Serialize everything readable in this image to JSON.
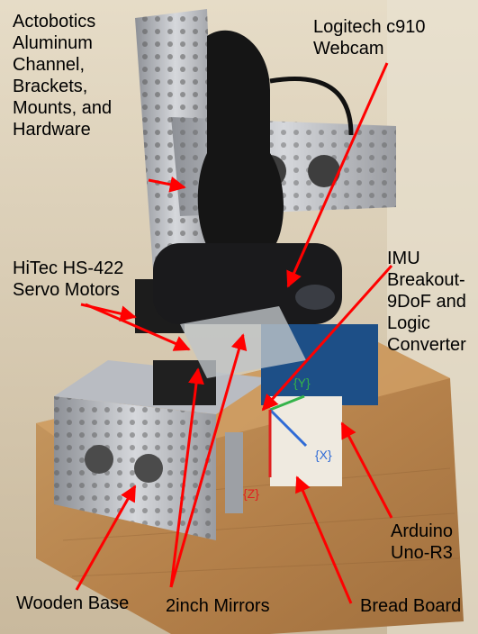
{
  "labels": {
    "actobotics": "Actobotics\nAluminum\nChannel,\nBrackets,\nMounts, and\nHardware",
    "webcam": "Logitech c910\nWebcam",
    "servo": "HiTec HS-422\nServo Motors",
    "imu": "IMU\nBreakout-\n9DoF and\nLogic\nConverter",
    "arduino": "Arduino\nUno-R3",
    "wooden_base": "Wooden Base",
    "mirrors": "2inch Mirrors",
    "bread_board": "Bread Board"
  },
  "axes": {
    "x": "{X}",
    "y": "{Y}",
    "z": "{Z}"
  },
  "colors": {
    "arrow": "#ff0000",
    "axis_x": "#2f6bd6",
    "axis_y": "#34b34a",
    "axis_z": "#e02020"
  }
}
